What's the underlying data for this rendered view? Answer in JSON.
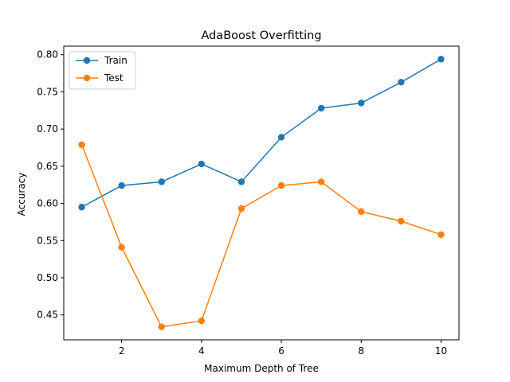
{
  "chart_data": {
    "type": "line",
    "title": "AdaBoost Overfitting",
    "xlabel": "Maximum Depth of Tree",
    "ylabel": "Accuracy",
    "x": [
      1,
      2,
      3,
      4,
      5,
      6,
      7,
      8,
      9,
      10
    ],
    "xticks": [
      "2",
      "4",
      "6",
      "8",
      "10"
    ],
    "yticks": [
      "0.45",
      "0.50",
      "0.55",
      "0.60",
      "0.65",
      "0.70",
      "0.75",
      "0.80"
    ],
    "xlim": [
      0.55,
      10.45
    ],
    "ylim": [
      0.4165,
      0.8115
    ],
    "grid": false,
    "legend_position": "upper-left",
    "series": [
      {
        "name": "Train",
        "color": "#1f77b4",
        "marker": "circle",
        "values": [
          0.595,
          0.624,
          0.629,
          0.653,
          0.629,
          0.689,
          0.728,
          0.735,
          0.763,
          0.794
        ]
      },
      {
        "name": "Test",
        "color": "#ff7f0e",
        "marker": "circle",
        "values": [
          0.679,
          0.541,
          0.434,
          0.442,
          0.593,
          0.624,
          0.629,
          0.589,
          0.576,
          0.558
        ]
      }
    ]
  }
}
